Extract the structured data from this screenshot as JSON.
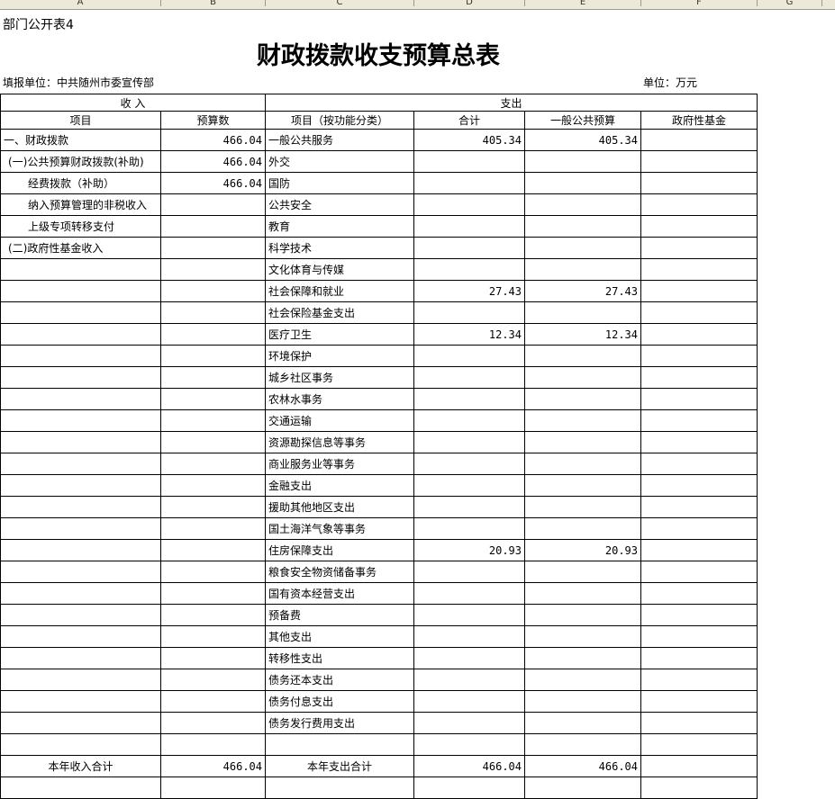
{
  "columns": [
    "A",
    "B",
    "C",
    "D",
    "E",
    "F",
    "G"
  ],
  "sheet_label": "部门公开表4",
  "title": "财政拨款收支预算总表",
  "unit_left": "填报单位：中共随州市委宣传部",
  "unit_right": "单位：万元",
  "headers": {
    "income": "收        入",
    "expense": "支出",
    "item": "项目",
    "budget": "预算数",
    "func_item": "项目（按功能分类）",
    "total": "合计",
    "general": "一般公共预算",
    "fund": "政府性基金"
  },
  "rows": [
    {
      "in": "一、财政拨款",
      "indent": 0,
      "inv": "466.04",
      "out": "一般公共服务",
      "t": "405.34",
      "g": "405.34",
      "f": ""
    },
    {
      "in": "(一)公共预算财政拨款(补助)",
      "indent": 1,
      "inv": "466.04",
      "out": "外交",
      "t": "",
      "g": "",
      "f": ""
    },
    {
      "in": "经费拨款（补助）",
      "indent": 2,
      "inv": "466.04",
      "out": "国防",
      "t": "",
      "g": "",
      "f": ""
    },
    {
      "in": "纳入预算管理的非税收入",
      "indent": 2,
      "inv": "",
      "out": "公共安全",
      "t": "",
      "g": "",
      "f": ""
    },
    {
      "in": "上级专项转移支付",
      "indent": 2,
      "inv": "",
      "out": "教育",
      "t": "",
      "g": "",
      "f": ""
    },
    {
      "in": "(二)政府性基金收入",
      "indent": 1,
      "inv": "",
      "out": "科学技术",
      "t": "",
      "g": "",
      "f": ""
    },
    {
      "in": "",
      "indent": 0,
      "inv": "",
      "out": "文化体育与传媒",
      "t": "",
      "g": "",
      "f": ""
    },
    {
      "in": "",
      "indent": 0,
      "inv": "",
      "out": "社会保障和就业",
      "t": "27.43",
      "g": "27.43",
      "f": ""
    },
    {
      "in": "",
      "indent": 0,
      "inv": "",
      "out": "社会保险基金支出",
      "t": "",
      "g": "",
      "f": ""
    },
    {
      "in": "",
      "indent": 0,
      "inv": "",
      "out": "医疗卫生",
      "t": "12.34",
      "g": "12.34",
      "f": ""
    },
    {
      "in": "",
      "indent": 0,
      "inv": "",
      "out": "环境保护",
      "t": "",
      "g": "",
      "f": ""
    },
    {
      "in": "",
      "indent": 0,
      "inv": "",
      "out": "城乡社区事务",
      "t": "",
      "g": "",
      "f": ""
    },
    {
      "in": "",
      "indent": 0,
      "inv": "",
      "out": "农林水事务",
      "t": "",
      "g": "",
      "f": ""
    },
    {
      "in": "",
      "indent": 0,
      "inv": "",
      "out": "交通运输",
      "t": "",
      "g": "",
      "f": ""
    },
    {
      "in": "",
      "indent": 0,
      "inv": "",
      "out": "资源勘探信息等事务",
      "t": "",
      "g": "",
      "f": ""
    },
    {
      "in": "",
      "indent": 0,
      "inv": "",
      "out": "商业服务业等事务",
      "t": "",
      "g": "",
      "f": ""
    },
    {
      "in": "",
      "indent": 0,
      "inv": "",
      "out": "金融支出",
      "t": "",
      "g": "",
      "f": ""
    },
    {
      "in": "",
      "indent": 0,
      "inv": "",
      "out": "援助其他地区支出",
      "t": "",
      "g": "",
      "f": ""
    },
    {
      "in": "",
      "indent": 0,
      "inv": "",
      "out": "国土海洋气象等事务",
      "t": "",
      "g": "",
      "f": ""
    },
    {
      "in": "",
      "indent": 0,
      "inv": "",
      "out": "住房保障支出",
      "t": "20.93",
      "g": "20.93",
      "f": ""
    },
    {
      "in": "",
      "indent": 0,
      "inv": "",
      "out": "粮食安全物资储备事务",
      "t": "",
      "g": "",
      "f": ""
    },
    {
      "in": "",
      "indent": 0,
      "inv": "",
      "out": "国有资本经营支出",
      "t": "",
      "g": "",
      "f": ""
    },
    {
      "in": "",
      "indent": 0,
      "inv": "",
      "out": "预备费",
      "t": "",
      "g": "",
      "f": ""
    },
    {
      "in": "",
      "indent": 0,
      "inv": "",
      "out": "其他支出",
      "t": "",
      "g": "",
      "f": ""
    },
    {
      "in": "",
      "indent": 0,
      "inv": "",
      "out": "转移性支出",
      "t": "",
      "g": "",
      "f": ""
    },
    {
      "in": "",
      "indent": 0,
      "inv": "",
      "out": "债务还本支出",
      "t": "",
      "g": "",
      "f": ""
    },
    {
      "in": "",
      "indent": 0,
      "inv": "",
      "out": "债务付息支出",
      "t": "",
      "g": "",
      "f": ""
    },
    {
      "in": "",
      "indent": 0,
      "inv": "",
      "out": "债务发行费用支出",
      "t": "",
      "g": "",
      "f": ""
    },
    {
      "in": "",
      "indent": 0,
      "inv": "",
      "out": "",
      "t": "",
      "g": "",
      "f": ""
    }
  ],
  "totals": {
    "income_label": "本年收入合计",
    "income": "466.04",
    "expense_label": "本年支出合计",
    "total": "466.04",
    "general": "466.04",
    "fund": ""
  }
}
